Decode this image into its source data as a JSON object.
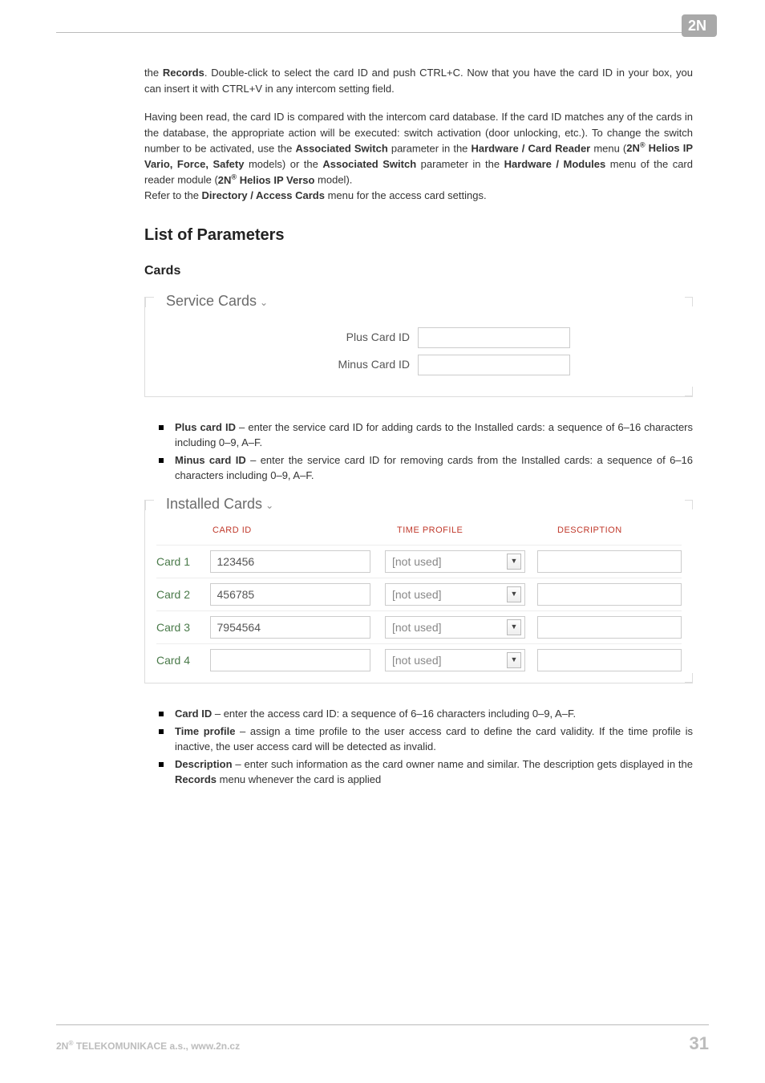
{
  "header": {
    "logo_bg": "#a9a9a9",
    "logo_text": "2N"
  },
  "intro": {
    "p1_a": "the ",
    "p1_b": "Records",
    "p1_c": ". Double-click to select the card ID and push CTRL+C. Now that you have the card ID in your box, you can insert it with CTRL+V in any intercom setting field.",
    "p2_a": "Having been read, the card ID is compared with the intercom card database. If the card ID matches any of the cards in the database, the appropriate action will be executed: switch activation (door unlocking, etc.). To change the switch number to be activated, use the ",
    "p2_b": "Associated Switch",
    "p2_c": " parameter in the ",
    "p2_d": "Hardware / Card Reader",
    "p2_e": " menu (",
    "p2_f": "2N",
    "p2_g": " Helios IP Vario, Force, Safety",
    "p2_h": " models) or the ",
    "p2_i": "Associated Switch",
    "p2_j": " parameter in the ",
    "p2_k": "Hardware / Modules",
    "p2_l": " menu of the card reader module (",
    "p2_m": "2N",
    "p2_n": " Helios IP Verso",
    "p2_o": " model).",
    "p3_a": "Refer to the ",
    "p3_b": "Directory / Access Cards",
    "p3_c": " menu for the access card settings."
  },
  "headings": {
    "list_of_parameters": "List of Parameters",
    "cards": "Cards"
  },
  "service_cards": {
    "legend": "Service Cards",
    "plus_label": "Plus Card ID",
    "minus_label": "Minus Card ID",
    "plus_value": "",
    "minus_value": ""
  },
  "service_bullets": {
    "b1_a": "Plus card ID",
    "b1_b": " – enter the service card ID for adding cards to the Installed cards: a sequence of 6–16 characters including 0–9, A–F.",
    "b2_a": "Minus card ID",
    "b2_b": " –  enter the service card ID for removing cards from the Installed cards: a sequence of 6–16 characters including 0–9, A–F."
  },
  "installed": {
    "legend": "Installed Cards",
    "head_cardid": "CARD ID",
    "head_tp": "TIME PROFILE",
    "head_desc": "DESCRIPTION",
    "rows": [
      {
        "label": "Card 1",
        "id": "123456",
        "tp": "[not used]",
        "desc": ""
      },
      {
        "label": "Card 2",
        "id": "456785",
        "tp": "[not used]",
        "desc": ""
      },
      {
        "label": "Card 3",
        "id": "7954564",
        "tp": "[not used]",
        "desc": ""
      },
      {
        "label": "Card 4",
        "id": "",
        "tp": "[not used]",
        "desc": ""
      }
    ]
  },
  "installed_bullets": {
    "b1_a": "Card ID",
    "b1_b": " – enter the access card ID: a sequence of 6–16 characters including 0–9, A–F.",
    "b2_a": "Time profile",
    "b2_b": " – assign a time profile to the user access card to define the card validity. If the time profile is inactive, the user access card will be detected as invalid.",
    "b3_a": "Description",
    "b3_b": " – enter such information as the card owner name and similar. The description gets displayed in the ",
    "b3_c": "Records",
    "b3_d": " menu whenever the card is applied"
  },
  "footer": {
    "left_a": "2N",
    "left_b": " TELEKOMUNIKACE a.s., www.2n.cz",
    "page": "31"
  }
}
